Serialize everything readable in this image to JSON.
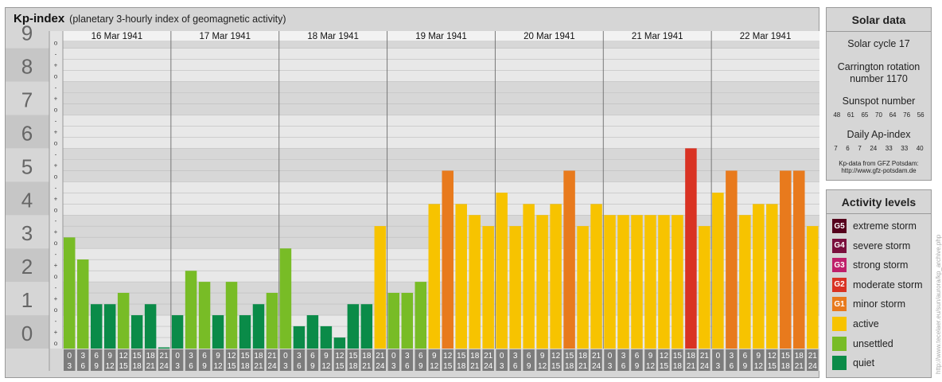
{
  "header": {
    "title": "Kp-index",
    "subtitle": "(planetary 3-hourly index of geomagnetic activity)"
  },
  "colors": {
    "quiet": "#0a8b48",
    "unsettled": "#78bc26",
    "active": "#f7c300",
    "G1": "#e87a1d",
    "G2": "#d93223",
    "G3": "#bf1f6a",
    "G4": "#7a0f3d",
    "G5": "#55001c"
  },
  "chart_data": {
    "type": "bar",
    "title": "Kp-index",
    "ylim": [
      0,
      9
    ],
    "y_ticks": [
      "0",
      "1",
      "2",
      "3",
      "4",
      "5",
      "6",
      "7",
      "8",
      "9"
    ],
    "minor_ticks": [
      "o",
      "+",
      "-"
    ],
    "days": [
      "16 Mar 1941",
      "17 Mar 1941",
      "18 Mar 1941",
      "19 Mar 1941",
      "20 Mar 1941",
      "21 Mar 1941",
      "22 Mar 1941"
    ],
    "hour_labels": [
      [
        "0",
        "3"
      ],
      [
        "3",
        "6"
      ],
      [
        "6",
        "9"
      ],
      [
        "9",
        "12"
      ],
      [
        "12",
        "15"
      ],
      [
        "15",
        "18"
      ],
      [
        "18",
        "21"
      ],
      [
        "21",
        "24"
      ]
    ],
    "values": [
      [
        3.33,
        2.67,
        1.33,
        1.33,
        1.67,
        1.0,
        1.33,
        0.0
      ],
      [
        1.0,
        2.33,
        2.0,
        1.0,
        2.0,
        1.0,
        1.33,
        1.67
      ],
      [
        3.0,
        0.67,
        1.0,
        0.67,
        0.33,
        1.33,
        1.33,
        3.67
      ],
      [
        1.67,
        1.67,
        2.0,
        4.33,
        5.33,
        4.33,
        4.0,
        3.67
      ],
      [
        4.67,
        3.67,
        4.33,
        4.0,
        4.33,
        5.33,
        3.67,
        4.33
      ],
      [
        4.0,
        4.0,
        4.0,
        4.0,
        4.0,
        4.0,
        6.0,
        3.67
      ],
      [
        4.67,
        5.33,
        4.0,
        4.33,
        4.33,
        5.33,
        5.33,
        3.67
      ]
    ]
  },
  "solar": {
    "title": "Solar data",
    "cycle": "Solar cycle 17",
    "carrington_1": "Carrington rotation",
    "carrington_2": "number 1170",
    "sunspot_title": "Sunspot number",
    "sunspots": [
      "48",
      "61",
      "65",
      "70",
      "64",
      "76",
      "56"
    ],
    "ap_title": "Daily Ap-index",
    "ap": [
      "7",
      "6",
      "7",
      "24",
      "33",
      "33",
      "40"
    ],
    "source_1": "Kp-data from GFZ Potsdam:",
    "source_2": "http://www.gfz-potsdam.de"
  },
  "levels": {
    "title": "Activity levels",
    "items": [
      {
        "badge": "G5",
        "label": "extreme storm",
        "color": "#55001c"
      },
      {
        "badge": "G4",
        "label": "severe storm",
        "color": "#7a0f3d"
      },
      {
        "badge": "G3",
        "label": "strong storm",
        "color": "#bf1f6a"
      },
      {
        "badge": "G2",
        "label": "moderate storm",
        "color": "#d93223"
      },
      {
        "badge": "G1",
        "label": "minor storm",
        "color": "#e87a1d"
      },
      {
        "badge": "",
        "label": "active",
        "color": "#f7c300"
      },
      {
        "badge": "",
        "label": "unsettled",
        "color": "#78bc26"
      },
      {
        "badge": "",
        "label": "quiet",
        "color": "#0a8b48"
      }
    ]
  },
  "credit": "http://www.tecelaer.eu/sun/aurora/kp_archive.php"
}
